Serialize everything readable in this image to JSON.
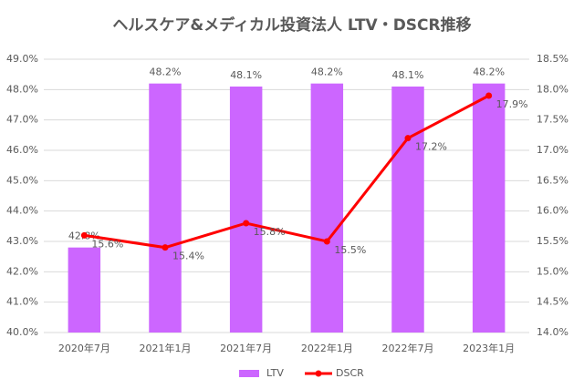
{
  "chart_data": {
    "type": "combo",
    "title": "ヘルスケア&メディカル投資法人 LTV・DSCR推移",
    "categories": [
      "2020年7月",
      "2021年1月",
      "2021年7月",
      "2022年1月",
      "2022年7月",
      "2023年1月"
    ],
    "series": [
      {
        "name": "LTV",
        "type": "bar",
        "color": "#cc66ff",
        "values": [
          42.8,
          48.2,
          48.1,
          48.2,
          48.1,
          48.2
        ],
        "value_labels": [
          "42.8%",
          "48.2%",
          "48.1%",
          "48.2%",
          "48.1%",
          "48.2%"
        ]
      },
      {
        "name": "DSCR",
        "type": "line",
        "axis": "y2",
        "color": "#ff0000",
        "values": [
          15.6,
          15.4,
          15.8,
          15.5,
          17.2,
          17.9
        ],
        "value_labels": [
          "15.6%",
          "15.4%",
          "15.8%",
          "15.5%",
          "17.2%",
          "17.9%"
        ]
      }
    ],
    "ylim": [
      40,
      49
    ],
    "yticks": [
      {
        "value": 40,
        "label": "40.0%"
      },
      {
        "value": 41,
        "label": "41.0%"
      },
      {
        "value": 42,
        "label": "42.0%"
      },
      {
        "value": 43,
        "label": "43.0%"
      },
      {
        "value": 44,
        "label": "44.0%"
      },
      {
        "value": 45,
        "label": "45.0%"
      },
      {
        "value": 46,
        "label": "46.0%"
      },
      {
        "value": 47,
        "label": "47.0%"
      },
      {
        "value": 48,
        "label": "48.0%"
      },
      {
        "value": 49,
        "label": "49.0%"
      }
    ],
    "y2lim": [
      14,
      18.5
    ],
    "y2ticks": [
      {
        "value": 14,
        "label": "14.0%"
      },
      {
        "value": 14.5,
        "label": "14.5%"
      },
      {
        "value": 15,
        "label": "15.0%"
      },
      {
        "value": 15.5,
        "label": "15.5%"
      },
      {
        "value": 16,
        "label": "16.0%"
      },
      {
        "value": 16.5,
        "label": "16.5%"
      },
      {
        "value": 17,
        "label": "17.0%"
      },
      {
        "value": 17.5,
        "label": "17.5%"
      },
      {
        "value": 18,
        "label": "18.0%"
      },
      {
        "value": 18.5,
        "label": "18.5%"
      }
    ],
    "grid": true,
    "legend": "bottom"
  }
}
